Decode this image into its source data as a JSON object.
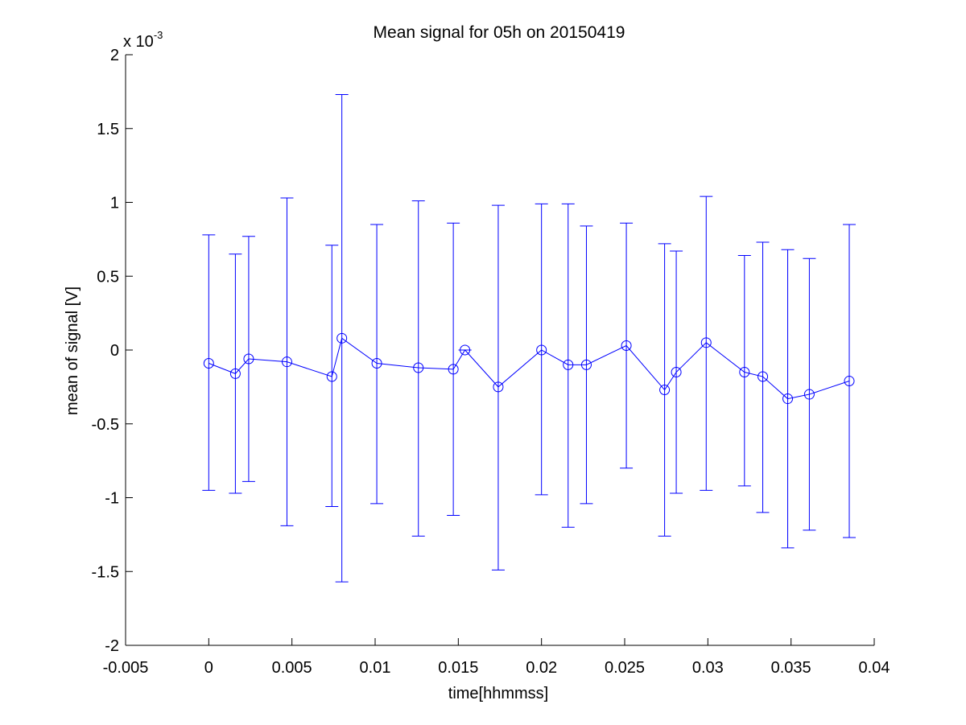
{
  "chart_data": {
    "type": "line",
    "title": "Mean signal for 05h on 20150419",
    "xlabel": "time[hhmmss]",
    "ylabel": "mean of signal [V]",
    "xlim": [
      -0.005,
      0.04
    ],
    "ylim": [
      -2,
      2
    ],
    "y_multiplier_base": "x 10",
    "y_multiplier_exponent": "-3",
    "x_ticks": [
      -0.005,
      0,
      0.005,
      0.01,
      0.015,
      0.02,
      0.025,
      0.03,
      0.035,
      0.04
    ],
    "x_tick_labels": [
      "-0.005",
      "0",
      "0.005",
      "0.01",
      "0.015",
      "0.02",
      "0.025",
      "0.03",
      "0.035",
      "0.04"
    ],
    "y_ticks": [
      -2,
      -1.5,
      -1,
      -0.5,
      0,
      0.5,
      1,
      1.5,
      2
    ],
    "y_tick_labels": [
      "-2",
      "-1.5",
      "-1",
      "-0.5",
      "0",
      "0.5",
      "1",
      "1.5",
      "2"
    ],
    "grid": false,
    "legend": false,
    "series_color": "#0000ff",
    "marker": "circle",
    "series": [
      {
        "x": [
          0.0,
          0.0016,
          0.0024,
          0.0047,
          0.0074,
          0.008,
          0.0101,
          0.0126,
          0.0147,
          0.0154,
          0.0174,
          0.02,
          0.0216,
          0.0227,
          0.0251,
          0.0274,
          0.0281,
          0.0299,
          0.0322,
          0.0333,
          0.0348,
          0.0361,
          0.0385
        ],
        "y": [
          -0.09,
          -0.16,
          -0.06,
          -0.08,
          -0.18,
          0.08,
          -0.09,
          -0.12,
          -0.13,
          0.0,
          -0.25,
          0.0,
          -0.1,
          -0.1,
          0.03,
          -0.27,
          -0.15,
          0.05,
          -0.15,
          -0.18,
          -0.33,
          -0.3,
          -0.21
        ],
        "upper": [
          0.78,
          0.65,
          0.77,
          1.03,
          0.71,
          1.73,
          0.85,
          1.01,
          0.86,
          0.0,
          0.98,
          0.99,
          0.99,
          0.84,
          0.86,
          0.72,
          0.67,
          1.04,
          0.64,
          0.73,
          0.68,
          0.62,
          0.85
        ],
        "lower": [
          -0.95,
          -0.97,
          -0.89,
          -1.19,
          -1.06,
          -1.57,
          -1.04,
          -1.26,
          -1.12,
          0.0,
          -1.49,
          -0.98,
          -1.2,
          -1.04,
          -0.8,
          -1.26,
          -0.97,
          -0.95,
          -0.92,
          -1.1,
          -1.34,
          -1.22,
          -1.27
        ]
      }
    ]
  }
}
